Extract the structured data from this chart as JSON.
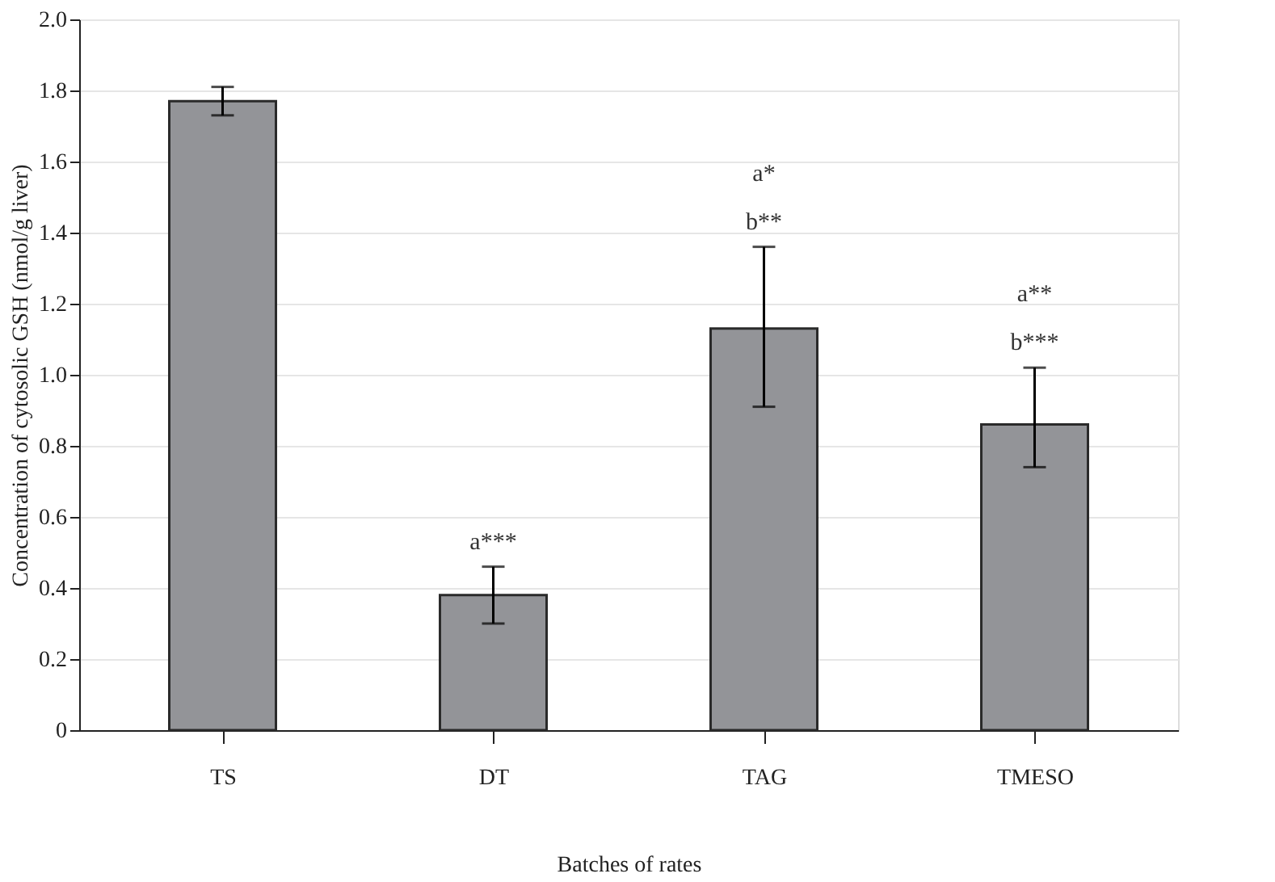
{
  "chart_data": {
    "type": "bar",
    "xlabel": "Batches of rates",
    "ylabel": "Concentration of cytosolic GSH (nmol/g liver)",
    "categories": [
      "TS",
      "DT",
      "TAG",
      "TMESO"
    ],
    "values": [
      1.77,
      0.38,
      1.13,
      0.86
    ],
    "color": "#939498",
    "errors": [
      [
        1.73,
        1.81
      ],
      [
        0.3,
        0.46
      ],
      [
        0.91,
        1.36
      ],
      [
        0.74,
        1.02
      ]
    ],
    "ylim": [
      0,
      2.0
    ],
    "yticks": [
      0,
      0.2,
      0.4,
      0.6,
      0.8,
      {
        "value": 1,
        "label": "1.0"
      },
      1.2,
      1.4,
      1.6,
      1.8,
      {
        "value": 2,
        "label": "2.0"
      }
    ],
    "grid": "y",
    "annotations": [
      "a***",
      "a*",
      "b**",
      "a**",
      "b***"
    ]
  }
}
